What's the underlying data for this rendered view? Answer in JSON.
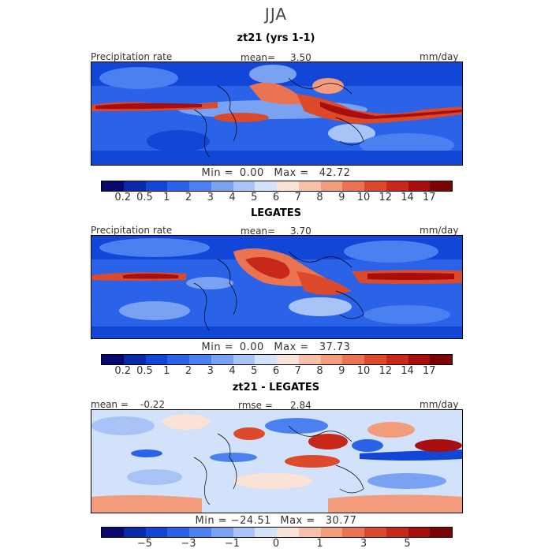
{
  "season": "JJA",
  "panels": [
    {
      "title": "zt21 (yrs 1-1)",
      "left_label": "Precipitation rate",
      "center_label": "mean=",
      "center_value": "3.50",
      "units": "mm/day",
      "min_label": "Min =",
      "min_value": "0.00",
      "max_label": "Max =",
      "max_value": "42.72"
    },
    {
      "title": "LEGATES",
      "left_label": "Precipitation rate",
      "center_label": "mean=",
      "center_value": "3.70",
      "units": "mm/day",
      "min_label": "Min =",
      "min_value": "0.00",
      "max_label": "Max =",
      "max_value": "37.73"
    },
    {
      "title": "zt21 - LEGATES",
      "left_label": "mean =",
      "left_value": "-0.22",
      "center_label": "rmse =",
      "center_value": "2.84",
      "units": "mm/day",
      "min_label": "Min =",
      "min_value": "−24.51",
      "max_label": "Max =",
      "max_value": "30.77"
    }
  ],
  "precip_colorbar": {
    "colors": [
      "#08086e",
      "#0b2aa8",
      "#1246d6",
      "#2a62e8",
      "#4a80f0",
      "#7aa2f2",
      "#a8c4f6",
      "#d2e2fa",
      "#fbe2d6",
      "#f7c0a8",
      "#f29c7c",
      "#ea7452",
      "#dc4a2c",
      "#c8281a",
      "#a80e0e",
      "#7a0404"
    ],
    "ticks": [
      "0.2",
      "0.5",
      "1",
      "2",
      "3",
      "4",
      "5",
      "6",
      "7",
      "8",
      "9",
      "10",
      "12",
      "14",
      "17"
    ]
  },
  "diff_colorbar": {
    "colors": [
      "#08086e",
      "#0b2aa8",
      "#1246d6",
      "#2a62e8",
      "#4a80f0",
      "#7aa2f2",
      "#a8c4f6",
      "#d2e2fa",
      "#fbe2d6",
      "#f7c0a8",
      "#f29c7c",
      "#ea7452",
      "#dc4a2c",
      "#c8281a",
      "#a80e0e",
      "#7a0404"
    ],
    "ticks": [
      "−5",
      "−3",
      "−1",
      "0",
      "1",
      "3",
      "5"
    ]
  },
  "map_colors": {
    "dry": "#1246d6",
    "mid": "#7aa2f2",
    "light": "#d2e2fa",
    "wet": "#dc4a2c",
    "vwet": "#a80e0e",
    "diff_bg": "#d8e6fb",
    "diff_pos": "#f29c7c",
    "diff_neg": "#2a62e8"
  }
}
